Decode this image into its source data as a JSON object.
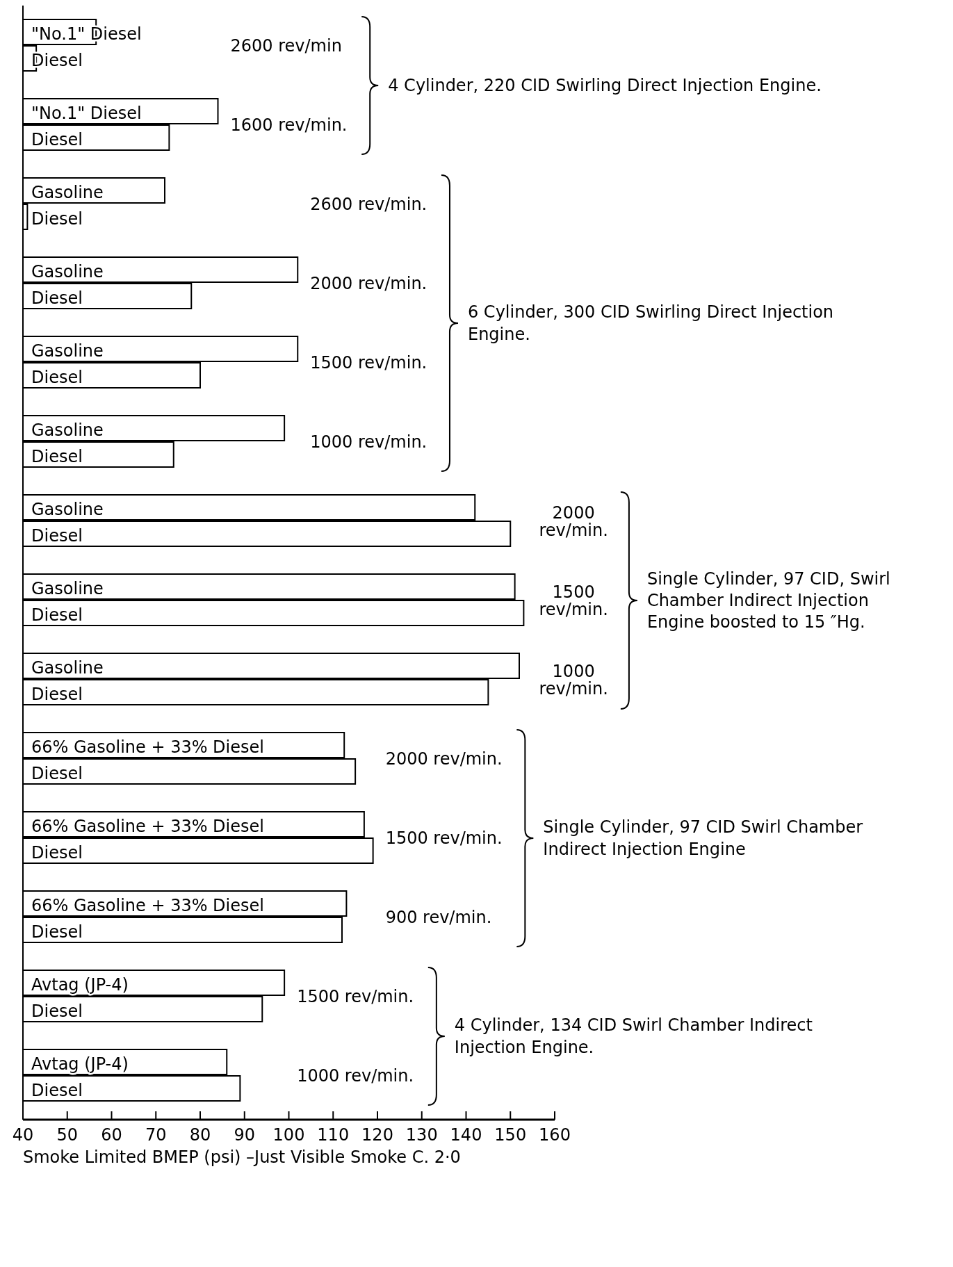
{
  "chart_data": {
    "type": "bar",
    "orientation": "horizontal",
    "xlabel": "Smoke Limited BMEP (psi) –Just Visible Smoke C. 2·0",
    "color": "#ffffff",
    "categories": [
      "\"No.1\" Diesel",
      "Diesel",
      "\"No.1\" Diesel",
      "Diesel",
      "Gasoline",
      "Diesel",
      "Gasoline",
      "Diesel",
      "Gasoline",
      "Diesel",
      "Gasoline",
      "Diesel",
      "Gasoline",
      "Diesel",
      "Gasoline",
      "Diesel",
      "Gasoline",
      "Diesel",
      "66% Gasoline + 33% Diesel",
      "Diesel",
      "66% Gasoline + 33% Diesel",
      "Diesel",
      "66% Gasoline + 33% Diesel",
      "Diesel",
      "Avtag (JP-4)",
      "Diesel",
      "Avtag (JP-4)",
      "Diesel"
    ],
    "values": [
      56.5,
      43,
      84,
      73,
      72,
      41,
      102,
      78,
      102,
      80,
      99,
      74,
      142,
      150,
      151,
      153,
      152,
      145,
      112.5,
      115,
      117,
      119,
      113,
      112,
      99,
      94,
      86,
      89
    ],
    "xlim": [
      40,
      160
    ],
    "xticks": [
      40,
      50,
      60,
      70,
      80,
      90,
      100,
      110,
      120,
      130,
      140,
      150,
      160
    ],
    "annotations": [
      "2600 rev/min",
      "1600 rev/min.",
      "2600 rev/min.",
      "2000 rev/min.",
      "1500 rev/min.",
      "1000 rev/min.",
      "2000 rev/min.",
      "1500 rev/min.",
      "1000 rev/min.",
      "2000 rev/min.",
      "1500 rev/min.",
      "900 rev/min.",
      "1500 rev/min.",
      "1000 rev/min.",
      "4 Cylinder, 220 CID Swirling Direct Injection Engine.",
      "6 Cylinder, 300 CID Swirling Direct Injection Engine.",
      "Single Cylinder, 97 CID, Swirl Chamber Indirect Injection Engine boosted to 15 ″Hg.",
      "Single Cylinder, 97 CID Swirl Chamber Indirect Injection Engine",
      "4 Cylinder, 134 CID Swirl Chamber Indirect Injection Engine."
    ]
  }
}
